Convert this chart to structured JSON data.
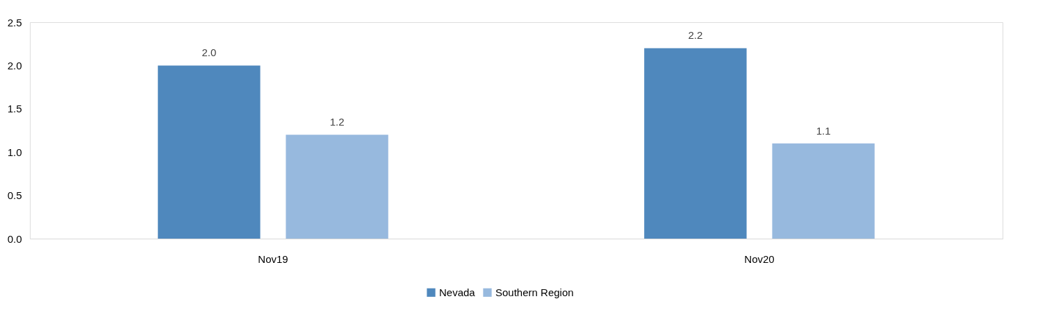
{
  "chart_data": {
    "type": "bar",
    "categories": [
      "Nov19",
      "Nov20"
    ],
    "series": [
      {
        "name": "Nevada",
        "color": "#4f88bd",
        "values": [
          2.0,
          2.2
        ],
        "value_labels": [
          "2.0",
          "2.2"
        ]
      },
      {
        "name": "Southern Region",
        "color": "#97b9de",
        "values": [
          1.2,
          1.1
        ],
        "value_labels": [
          "1.2",
          "1.1"
        ]
      }
    ],
    "ylim": [
      0,
      2.5
    ],
    "yticks": [
      {
        "value": 0,
        "label": "0.0"
      },
      {
        "value": 0.5,
        "label": "0.5"
      },
      {
        "value": 1,
        "label": "1.0"
      },
      {
        "value": 1.5,
        "label": "1.5"
      },
      {
        "value": 2,
        "label": "2.0"
      },
      {
        "value": 2.5,
        "label": "2.5"
      }
    ],
    "legend": "bottom",
    "grid": false
  }
}
